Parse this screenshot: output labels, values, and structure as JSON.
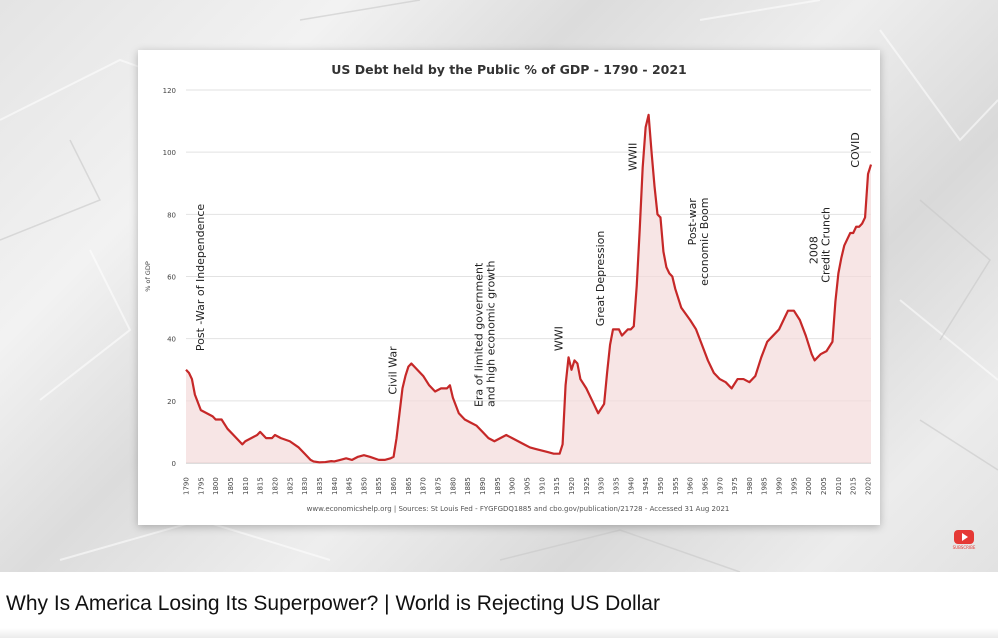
{
  "video": {
    "title": "Why Is America Losing Its Superpower? | World is Rejecting US Dollar",
    "subscribe_label": "SUBSCRIBE",
    "subscribe_icon": "youtube-play-icon",
    "accent_color": "#e53935"
  },
  "chart_data": {
    "type": "area",
    "title": "US Debt held by the Public % of GDP - 1790 - 2021",
    "ylabel": "% of GDP",
    "xlabel": "",
    "ylim": [
      0,
      120
    ],
    "xlim": [
      1790,
      2021
    ],
    "yticks": [
      0,
      20,
      40,
      60,
      80,
      100,
      120
    ],
    "xticks": [
      1790,
      1795,
      1800,
      1805,
      1810,
      1815,
      1820,
      1825,
      1830,
      1835,
      1840,
      1845,
      1850,
      1855,
      1860,
      1865,
      1870,
      1875,
      1880,
      1885,
      1890,
      1895,
      1900,
      1905,
      1910,
      1915,
      1920,
      1925,
      1930,
      1935,
      1940,
      1945,
      1950,
      1955,
      1960,
      1965,
      1970,
      1975,
      1980,
      1985,
      1990,
      1995,
      2000,
      2005,
      2010,
      2015,
      2020
    ],
    "grid": "horizontal",
    "line_color": "#c62828",
    "fill_color": "#f3dada",
    "series": [
      {
        "points": [
          [
            1790,
            30
          ],
          [
            1791,
            29
          ],
          [
            1792,
            27
          ],
          [
            1793,
            22
          ],
          [
            1795,
            17
          ],
          [
            1797,
            16
          ],
          [
            1799,
            15
          ],
          [
            1800,
            14
          ],
          [
            1802,
            14
          ],
          [
            1804,
            11
          ],
          [
            1806,
            9
          ],
          [
            1808,
            7
          ],
          [
            1809,
            6
          ],
          [
            1810,
            7
          ],
          [
            1812,
            8
          ],
          [
            1814,
            9
          ],
          [
            1815,
            10
          ],
          [
            1816,
            9
          ],
          [
            1817,
            8
          ],
          [
            1819,
            8
          ],
          [
            1820,
            9
          ],
          [
            1822,
            8
          ],
          [
            1825,
            7
          ],
          [
            1828,
            5
          ],
          [
            1830,
            3
          ],
          [
            1832,
            1
          ],
          [
            1833,
            0.5
          ],
          [
            1835,
            0.2
          ],
          [
            1837,
            0.3
          ],
          [
            1839,
            0.6
          ],
          [
            1840,
            0.5
          ],
          [
            1842,
            1
          ],
          [
            1844,
            1.5
          ],
          [
            1846,
            1
          ],
          [
            1848,
            2
          ],
          [
            1850,
            2.5
          ],
          [
            1852,
            2
          ],
          [
            1855,
            1
          ],
          [
            1857,
            1
          ],
          [
            1859,
            1.5
          ],
          [
            1860,
            2
          ],
          [
            1861,
            8
          ],
          [
            1862,
            16
          ],
          [
            1863,
            24
          ],
          [
            1864,
            28
          ],
          [
            1865,
            31
          ],
          [
            1866,
            32
          ],
          [
            1867,
            31
          ],
          [
            1868,
            30
          ],
          [
            1870,
            28
          ],
          [
            1872,
            25
          ],
          [
            1874,
            23
          ],
          [
            1876,
            24
          ],
          [
            1878,
            24
          ],
          [
            1879,
            25
          ],
          [
            1880,
            21
          ],
          [
            1882,
            16
          ],
          [
            1884,
            14
          ],
          [
            1886,
            13
          ],
          [
            1888,
            12
          ],
          [
            1890,
            10
          ],
          [
            1892,
            8
          ],
          [
            1894,
            7
          ],
          [
            1896,
            8
          ],
          [
            1898,
            9
          ],
          [
            1900,
            8
          ],
          [
            1902,
            7
          ],
          [
            1904,
            6
          ],
          [
            1906,
            5
          ],
          [
            1908,
            4.5
          ],
          [
            1910,
            4
          ],
          [
            1912,
            3.5
          ],
          [
            1914,
            3
          ],
          [
            1916,
            3
          ],
          [
            1917,
            6
          ],
          [
            1918,
            25
          ],
          [
            1919,
            34
          ],
          [
            1920,
            30
          ],
          [
            1921,
            33
          ],
          [
            1922,
            32
          ],
          [
            1923,
            27
          ],
          [
            1925,
            24
          ],
          [
            1927,
            20
          ],
          [
            1929,
            16
          ],
          [
            1931,
            19
          ],
          [
            1932,
            29
          ],
          [
            1933,
            38
          ],
          [
            1934,
            43
          ],
          [
            1936,
            43
          ],
          [
            1937,
            41
          ],
          [
            1938,
            42
          ],
          [
            1939,
            43
          ],
          [
            1940,
            43
          ],
          [
            1941,
            44
          ],
          [
            1942,
            57
          ],
          [
            1943,
            75
          ],
          [
            1944,
            95
          ],
          [
            1945,
            108
          ],
          [
            1946,
            112
          ],
          [
            1947,
            100
          ],
          [
            1948,
            89
          ],
          [
            1949,
            80
          ],
          [
            1950,
            79
          ],
          [
            1951,
            68
          ],
          [
            1952,
            63
          ],
          [
            1953,
            61
          ],
          [
            1954,
            60
          ],
          [
            1955,
            56
          ],
          [
            1957,
            50
          ],
          [
            1960,
            46
          ],
          [
            1962,
            43
          ],
          [
            1964,
            38
          ],
          [
            1966,
            33
          ],
          [
            1968,
            29
          ],
          [
            1970,
            27
          ],
          [
            1972,
            26
          ],
          [
            1974,
            24
          ],
          [
            1976,
            27
          ],
          [
            1978,
            27
          ],
          [
            1980,
            26
          ],
          [
            1982,
            28
          ],
          [
            1984,
            34
          ],
          [
            1986,
            39
          ],
          [
            1988,
            41
          ],
          [
            1990,
            43
          ],
          [
            1992,
            47
          ],
          [
            1993,
            49
          ],
          [
            1995,
            49
          ],
          [
            1997,
            46
          ],
          [
            1999,
            41
          ],
          [
            2001,
            35
          ],
          [
            2002,
            33
          ],
          [
            2004,
            35
          ],
          [
            2006,
            36
          ],
          [
            2008,
            39
          ],
          [
            2009,
            52
          ],
          [
            2010,
            61
          ],
          [
            2011,
            66
          ],
          [
            2012,
            70
          ],
          [
            2013,
            72
          ],
          [
            2014,
            74
          ],
          [
            2015,
            74
          ],
          [
            2016,
            76
          ],
          [
            2017,
            76
          ],
          [
            2018,
            77
          ],
          [
            2019,
            79
          ],
          [
            2020,
            93
          ],
          [
            2021,
            96
          ]
        ]
      }
    ],
    "annotations": [
      {
        "text": "Post -War of Independence",
        "x": 1796,
        "y": 36
      },
      {
        "text": "Civil War",
        "x": 1861,
        "y": 22
      },
      {
        "text": "Era of limited government",
        "x": 1890,
        "y": 18
      },
      {
        "text": "and high economic growth",
        "x": 1894,
        "y": 18
      },
      {
        "text": "WWI",
        "x": 1917,
        "y": 36
      },
      {
        "text": "Great Depression",
        "x": 1931,
        "y": 44
      },
      {
        "text": "WWII",
        "x": 1942,
        "y": 94
      },
      {
        "text": "Post-war",
        "x": 1962,
        "y": 70
      },
      {
        "text": "economic Boom",
        "x": 1966,
        "y": 57
      },
      {
        "text": "2008",
        "x": 2003,
        "y": 64
      },
      {
        "text": "Credit Crunch",
        "x": 2007,
        "y": 58
      },
      {
        "text": "COVID",
        "x": 2017,
        "y": 95
      }
    ],
    "source": "www.economicshelp.org | Sources: St Louis Fed - FYGFGDQ1885 and cbo.gov/publication/21728 - Accessed 31 Aug 2021"
  }
}
